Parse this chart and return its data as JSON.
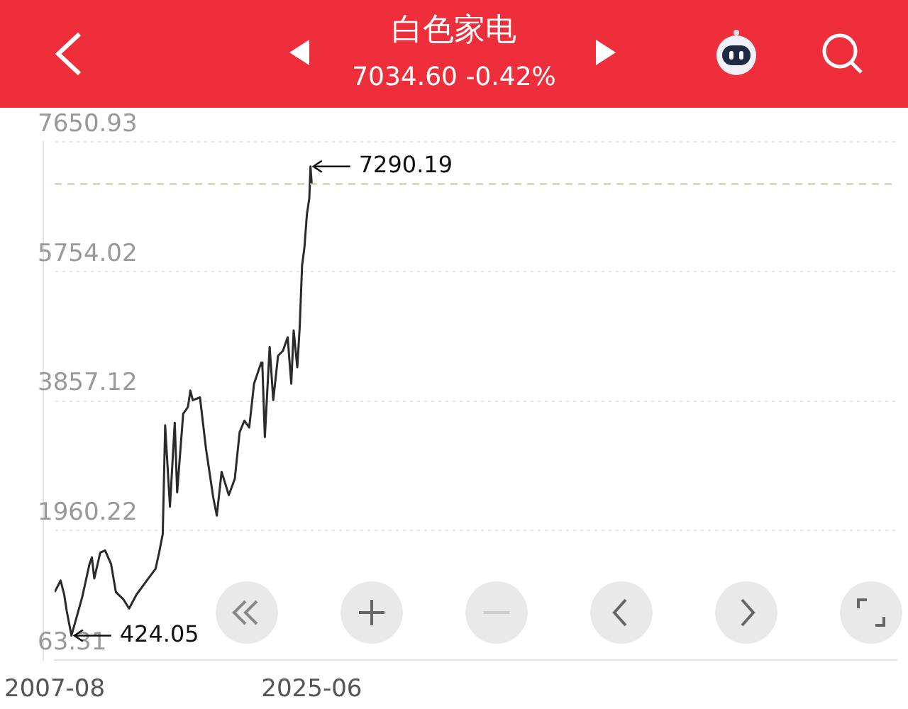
{
  "chart_data": {
    "type": "line",
    "title": "白色家电",
    "subtitle": "7034.60 -0.42%",
    "x": [
      "2007-08",
      "2008-01",
      "2008-04",
      "2008-06",
      "2008-10",
      "2009-07",
      "2010-01",
      "2010-03",
      "2010-05",
      "2010-10",
      "2011-02",
      "2011-07",
      "2011-11",
      "2012-05",
      "2012-10",
      "2013-04",
      "2014-02",
      "2014-08",
      "2014-11",
      "2015-02",
      "2015-04",
      "2015-08",
      "2015-12",
      "2016-02",
      "2016-07",
      "2016-11",
      "2017-01",
      "2017-03",
      "2017-09",
      "2018-02",
      "2018-08",
      "2018-11",
      "2019-03",
      "2019-09",
      "2020-02",
      "2020-06",
      "2020-10",
      "2021-02",
      "2021-06",
      "2021-12",
      "2022-01",
      "2022-03",
      "2022-07",
      "2022-10",
      "2023-02",
      "2023-06",
      "2023-10",
      "2024-01",
      "2024-03",
      "2024-06",
      "2024-08",
      "2024-10",
      "2024-12",
      "2025-02",
      "2025-04",
      "2025-05",
      "2025-06"
    ],
    "series": [
      {
        "color": "#2b2b2b",
        "values": [
          1060,
          1230,
          1020,
          790,
          424.05,
          990,
          1470,
          1570,
          1260,
          1640,
          1670,
          1470,
          1060,
          960,
          820,
          1020,
          1260,
          1400,
          1640,
          1910,
          3500,
          2310,
          3540,
          2520,
          3670,
          3770,
          4010,
          3870,
          3910,
          3160,
          2450,
          2180,
          2820,
          2480,
          2720,
          3400,
          3570,
          3470,
          4110,
          4420,
          4350,
          3330,
          4650,
          3870,
          4520,
          4590,
          4790,
          4110,
          4890,
          4350,
          4930,
          5840,
          6110,
          6590,
          6820,
          7290.19,
          7034.6
        ]
      }
    ],
    "xlim": [
      "2007-08",
      "2066-01"
    ],
    "xticks": [
      "2007-08",
      "2025-06"
    ],
    "ylim": [
      63.31,
      7650.93
    ],
    "yticks": [
      63.31,
      1960.22,
      3857.12,
      5754.02,
      7650.93
    ],
    "grid": "y",
    "legend": false,
    "marker": "none",
    "ref_lines": [
      {
        "axis": "y",
        "value": 7034.6,
        "color": "#c9c49a",
        "line_style": "dashed"
      }
    ],
    "annotations": [
      {
        "text": "7290.19",
        "x": "2025-05",
        "y": 7290.19
      },
      {
        "text": "424.05",
        "x": "2008-10",
        "y": 424.05
      }
    ]
  }
}
